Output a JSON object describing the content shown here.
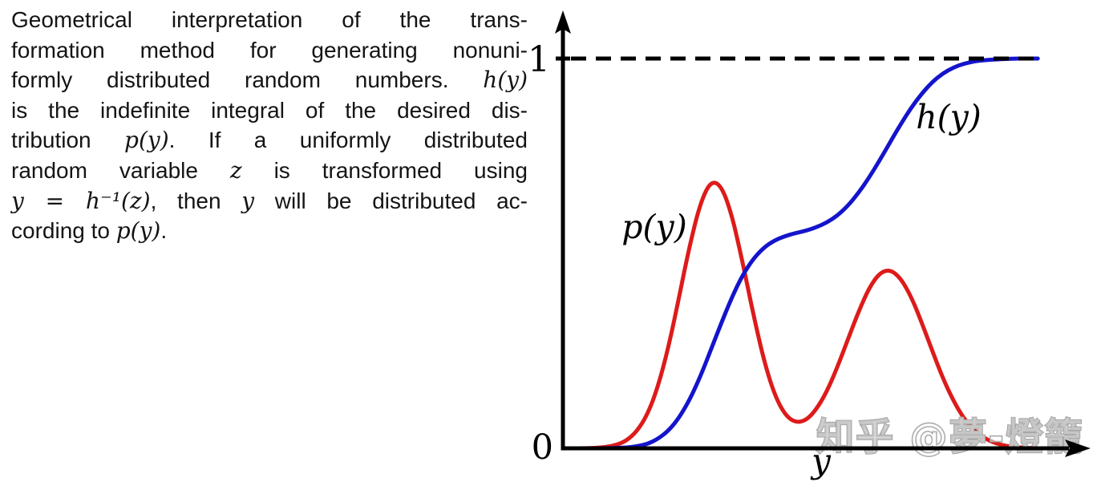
{
  "caption": {
    "lines": [
      "Geometrical interpretation of the trans-",
      "formation method for generating nonuni-",
      "formly distributed random numbers. `h(y)`",
      "is the indefinite integral of the desired dis-",
      "tribution `p(y)`. If a uniformly distributed",
      "random variable `z` is transformed using",
      "`y = h⁻¹(z)`, then `y` will be distributed ac-",
      "cording to `p(y)`."
    ]
  },
  "chart_data": {
    "type": "line",
    "title": "",
    "xlabel": "y",
    "ylabel": "",
    "xlim": [
      0,
      1
    ],
    "ylim": [
      0,
      1
    ],
    "ytick_labels": [
      "0",
      "1"
    ],
    "grid": false,
    "legend_position": "inline-labels",
    "reference_line": {
      "y": 1,
      "style": "dashed",
      "color": "#000000"
    },
    "axis_color": "#000000",
    "x": [
      0,
      0.02,
      0.04,
      0.06,
      0.08,
      0.1,
      0.12,
      0.14,
      0.16,
      0.18,
      0.2,
      0.22,
      0.24,
      0.26,
      0.28,
      0.3,
      0.32,
      0.34,
      0.36,
      0.38,
      0.4,
      0.42,
      0.44,
      0.46,
      0.48,
      0.5,
      0.52,
      0.54,
      0.56,
      0.58,
      0.6,
      0.62,
      0.64,
      0.66,
      0.68,
      0.7,
      0.72,
      0.74,
      0.76,
      0.78,
      0.8,
      0.82,
      0.84,
      0.86,
      0.88,
      0.9
    ],
    "series": [
      {
        "name": "p(y)",
        "color": "#dd1b1b",
        "values": [
          0,
          0,
          0,
          0.001,
          0.003,
          0.008,
          0.019,
          0.043,
          0.086,
          0.157,
          0.259,
          0.387,
          0.519,
          0.628,
          0.686,
          0.675,
          0.6,
          0.481,
          0.349,
          0.23,
          0.141,
          0.087,
          0.066,
          0.071,
          0.099,
          0.145,
          0.208,
          0.279,
          0.35,
          0.411,
          0.45,
          0.459,
          0.437,
          0.389,
          0.323,
          0.25,
          0.18,
          0.122,
          0.076,
          0.045,
          0.025,
          0.013,
          0.006,
          0.003,
          0.001,
          0
        ]
      },
      {
        "name": "h(y)",
        "color": "#1414cc",
        "values": [
          0,
          0,
          0,
          0,
          0,
          0.001,
          0.002,
          0.005,
          0.011,
          0.024,
          0.045,
          0.078,
          0.124,
          0.183,
          0.251,
          0.321,
          0.387,
          0.443,
          0.485,
          0.514,
          0.533,
          0.544,
          0.552,
          0.558,
          0.567,
          0.579,
          0.597,
          0.622,
          0.655,
          0.694,
          0.738,
          0.785,
          0.831,
          0.874,
          0.91,
          0.94,
          0.962,
          0.977,
          0.987,
          0.993,
          0.996,
          0.998,
          0.999,
          1,
          1,
          1
        ]
      }
    ]
  },
  "watermark": {
    "text": "知乎 @夢-燈籠",
    "color": "#9e9e9e"
  }
}
